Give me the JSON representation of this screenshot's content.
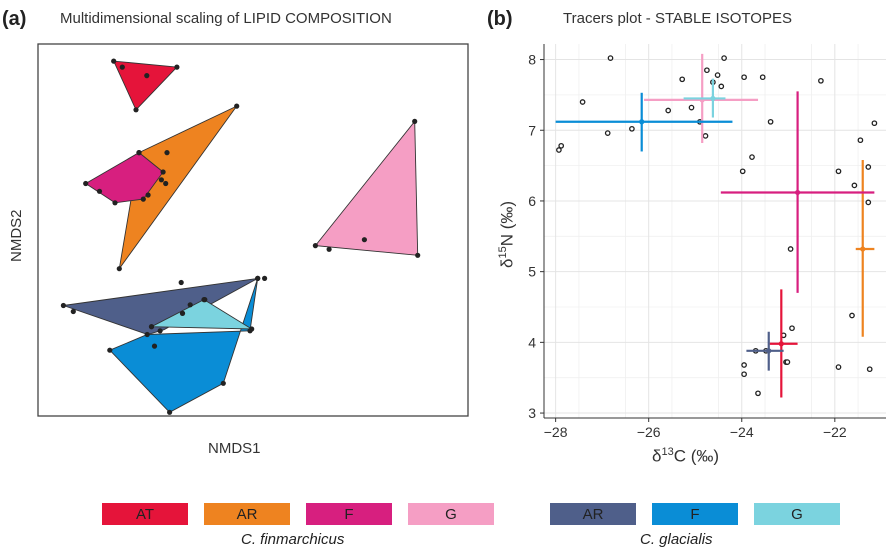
{
  "colors": {
    "fin_AT": "#e5143a",
    "fin_AR": "#ee8320",
    "fin_F": "#d71f7f",
    "fin_G": "#f59ec4",
    "gla_AR": "#4f5f8a",
    "gla_F": "#0a8dd6",
    "gla_G": "#7bd3df"
  },
  "panel_a": {
    "letter": "(a)",
    "title": "Multidimensional scaling of LIPID COMPOSITION",
    "xlabel": "NMDS1",
    "ylabel": "NMDS2"
  },
  "panel_b": {
    "letter": "(b)",
    "title": "Tracers plot - STABLE ISOTOPES",
    "xlabel_prefix": "δ",
    "xlabel_sup": "13",
    "xlabel_suffix": "C (‰)",
    "ylabel_prefix": "δ",
    "ylabel_sup": "15",
    "ylabel_suffix": "N (‰)"
  },
  "legend": {
    "finmarchicus": {
      "species": "C. finmarchicus",
      "items": [
        {
          "label": "AT",
          "color": "#e5143a"
        },
        {
          "label": "AR",
          "color": "#ee8320"
        },
        {
          "label": "F",
          "color": "#d71f7f"
        },
        {
          "label": "G",
          "color": "#f59ec4"
        }
      ]
    },
    "glacialis": {
      "species": "C. glacialis",
      "items": [
        {
          "label": "AR",
          "color": "#4f5f8a"
        },
        {
          "label": "F",
          "color": "#0a8dd6"
        },
        {
          "label": "G",
          "color": "#7bd3df"
        }
      ]
    }
  },
  "chart_data": [
    {
      "type": "scatter",
      "title": "Multidimensional scaling of LIPID COMPOSITION",
      "xlabel": "NMDS1",
      "ylabel": "NMDS2",
      "xlim": [
        0,
        1
      ],
      "ylim": [
        0,
        1
      ],
      "ticks": "none",
      "grid": false,
      "hulls": [
        {
          "name": "C. finmarchicus AT",
          "color": "#e5143a",
          "polygon": [
            [
              0.176,
              0.954
            ],
            [
              0.228,
              0.823
            ],
            [
              0.323,
              0.938
            ]
          ],
          "points": [
            [
              0.176,
              0.954
            ],
            [
              0.196,
              0.938
            ],
            [
              0.253,
              0.915
            ],
            [
              0.228,
              0.823
            ],
            [
              0.323,
              0.938
            ]
          ]
        },
        {
          "name": "C. finmarchicus AR",
          "color": "#ee8320",
          "polygon": [
            [
              0.235,
              0.708
            ],
            [
              0.462,
              0.833
            ],
            [
              0.189,
              0.396
            ]
          ],
          "points": [
            [
              0.235,
              0.708
            ],
            [
              0.3,
              0.708
            ],
            [
              0.462,
              0.833
            ],
            [
              0.287,
              0.635
            ],
            [
              0.297,
              0.625
            ],
            [
              0.189,
              0.396
            ],
            [
              0.256,
              0.594
            ]
          ]
        },
        {
          "name": "C. finmarchicus F",
          "color": "#d71f7f",
          "polygon": [
            [
              0.111,
              0.625
            ],
            [
              0.235,
              0.708
            ],
            [
              0.291,
              0.656
            ],
            [
              0.245,
              0.583
            ],
            [
              0.179,
              0.573
            ]
          ],
          "points": [
            [
              0.111,
              0.625
            ],
            [
              0.143,
              0.604
            ],
            [
              0.179,
              0.573
            ],
            [
              0.235,
              0.708
            ],
            [
              0.245,
              0.583
            ],
            [
              0.291,
              0.656
            ]
          ]
        },
        {
          "name": "C. finmarchicus G",
          "color": "#f59ec4",
          "polygon": [
            [
              0.645,
              0.458
            ],
            [
              0.876,
              0.792
            ],
            [
              0.883,
              0.432
            ]
          ],
          "points": [
            [
              0.645,
              0.458
            ],
            [
              0.677,
              0.448
            ],
            [
              0.759,
              0.474
            ],
            [
              0.876,
              0.792
            ],
            [
              0.883,
              0.432
            ]
          ]
        },
        {
          "name": "C. glacialis AR",
          "color": "#4f5f8a",
          "polygon": [
            [
              0.059,
              0.297
            ],
            [
              0.511,
              0.37
            ],
            [
              0.293,
              0.232
            ],
            [
              0.255,
              0.219
            ]
          ],
          "points": [
            [
              0.059,
              0.297
            ],
            [
              0.082,
              0.281
            ],
            [
              0.333,
              0.359
            ],
            [
              0.511,
              0.37
            ],
            [
              0.527,
              0.37
            ],
            [
              0.264,
              0.24
            ],
            [
              0.388,
              0.313
            ],
            [
              0.336,
              0.276
            ]
          ]
        },
        {
          "name": "C. glacialis F",
          "color": "#0a8dd6",
          "polygon": [
            [
              0.167,
              0.177
            ],
            [
              0.306,
              0.01
            ],
            [
              0.431,
              0.088
            ],
            [
              0.511,
              0.37
            ],
            [
              0.493,
              0.229
            ],
            [
              0.254,
              0.219
            ]
          ],
          "points": [
            [
              0.167,
              0.177
            ],
            [
              0.306,
              0.01
            ],
            [
              0.431,
              0.088
            ],
            [
              0.511,
              0.37
            ],
            [
              0.493,
              0.229
            ],
            [
              0.254,
              0.219
            ],
            [
              0.271,
              0.188
            ],
            [
              0.284,
              0.229
            ]
          ]
        },
        {
          "name": "C. glacialis G",
          "color": "#7bd3df",
          "polygon": [
            [
              0.264,
              0.24
            ],
            [
              0.386,
              0.313
            ],
            [
              0.497,
              0.234
            ]
          ],
          "points": [
            [
              0.264,
              0.24
            ],
            [
              0.336,
              0.276
            ],
            [
              0.354,
              0.299
            ],
            [
              0.386,
              0.313
            ],
            [
              0.497,
              0.234
            ]
          ]
        }
      ]
    },
    {
      "type": "scatter",
      "title": "Tracers plot - STABLE ISOTOPES",
      "xlabel": "δ13C (‰)",
      "ylabel": "δ15N (‰)",
      "xlim": [
        -28.25,
        -20.9
      ],
      "ylim": [
        2.93,
        8.22
      ],
      "xticks": [
        -28,
        -26,
        -24,
        -22
      ],
      "yticks": [
        3,
        4,
        5,
        6,
        7,
        8
      ],
      "grid": true,
      "points": [
        [
          -27.93,
          6.72
        ],
        [
          -27.88,
          6.78
        ],
        [
          -27.42,
          7.4
        ],
        [
          -26.82,
          8.02
        ],
        [
          -26.88,
          6.96
        ],
        [
          -26.36,
          7.02
        ],
        [
          -25.58,
          7.28
        ],
        [
          -25.28,
          7.72
        ],
        [
          -25.08,
          7.32
        ],
        [
          -24.9,
          7.12
        ],
        [
          -24.75,
          7.85
        ],
        [
          -24.78,
          6.92
        ],
        [
          -24.62,
          7.68
        ],
        [
          -24.52,
          7.78
        ],
        [
          -24.44,
          7.62
        ],
        [
          -24.38,
          8.02
        ],
        [
          -23.95,
          7.75
        ],
        [
          -23.55,
          7.75
        ],
        [
          -23.38,
          7.12
        ],
        [
          -23.98,
          6.42
        ],
        [
          -23.78,
          6.62
        ],
        [
          -22.3,
          7.7
        ],
        [
          -21.15,
          7.1
        ],
        [
          -21.45,
          6.86
        ],
        [
          -21.28,
          6.48
        ],
        [
          -21.58,
          6.22
        ],
        [
          -21.92,
          6.42
        ],
        [
          -21.28,
          5.98
        ],
        [
          -22.95,
          5.32
        ],
        [
          -21.63,
          4.38
        ],
        [
          -22.92,
          4.2
        ],
        [
          -23.1,
          4.1
        ],
        [
          -23.7,
          3.88
        ],
        [
          -23.48,
          3.88
        ],
        [
          -23.95,
          3.68
        ],
        [
          -23.95,
          3.55
        ],
        [
          -23.65,
          3.28
        ],
        [
          -23.05,
          3.72
        ],
        [
          -23.02,
          3.72
        ],
        [
          -21.92,
          3.65
        ],
        [
          -21.25,
          3.62
        ]
      ],
      "error_bars": [
        {
          "name": "C. finmarchicus AT",
          "color": "#e5143a",
          "x": -23.15,
          "y": 3.98,
          "x_range": [
            -23.4,
            -22.8
          ],
          "y_range": [
            3.22,
            4.75
          ]
        },
        {
          "name": "C. finmarchicus AR",
          "color": "#ee8320",
          "x": -21.4,
          "y": 5.32,
          "x_range": [
            -21.55,
            -21.15
          ],
          "y_range": [
            4.08,
            6.58
          ]
        },
        {
          "name": "C. finmarchicus F",
          "color": "#d71f7f",
          "x": -22.8,
          "y": 6.12,
          "x_range": [
            -24.45,
            -21.15
          ],
          "y_range": [
            4.7,
            7.55
          ]
        },
        {
          "name": "C. finmarchicus G",
          "color": "#f59ec4",
          "x": -24.85,
          "y": 7.43,
          "x_range": [
            -26.1,
            -23.65
          ],
          "y_range": [
            6.82,
            8.08
          ]
        },
        {
          "name": "C. glacialis AR",
          "color": "#4f5f8a",
          "x": -23.42,
          "y": 3.88,
          "x_range": [
            -23.9,
            -23.1
          ],
          "y_range": [
            3.6,
            4.15
          ]
        },
        {
          "name": "C. glacialis F",
          "color": "#0a8dd6",
          "x": -26.15,
          "y": 7.12,
          "x_range": [
            -28.0,
            -24.2
          ],
          "y_range": [
            6.7,
            7.53
          ]
        },
        {
          "name": "C. glacialis G",
          "color": "#7bd3df",
          "x": -24.62,
          "y": 7.45,
          "x_range": [
            -25.25,
            -24.35
          ],
          "y_range": [
            7.18,
            7.73
          ]
        }
      ]
    }
  ]
}
